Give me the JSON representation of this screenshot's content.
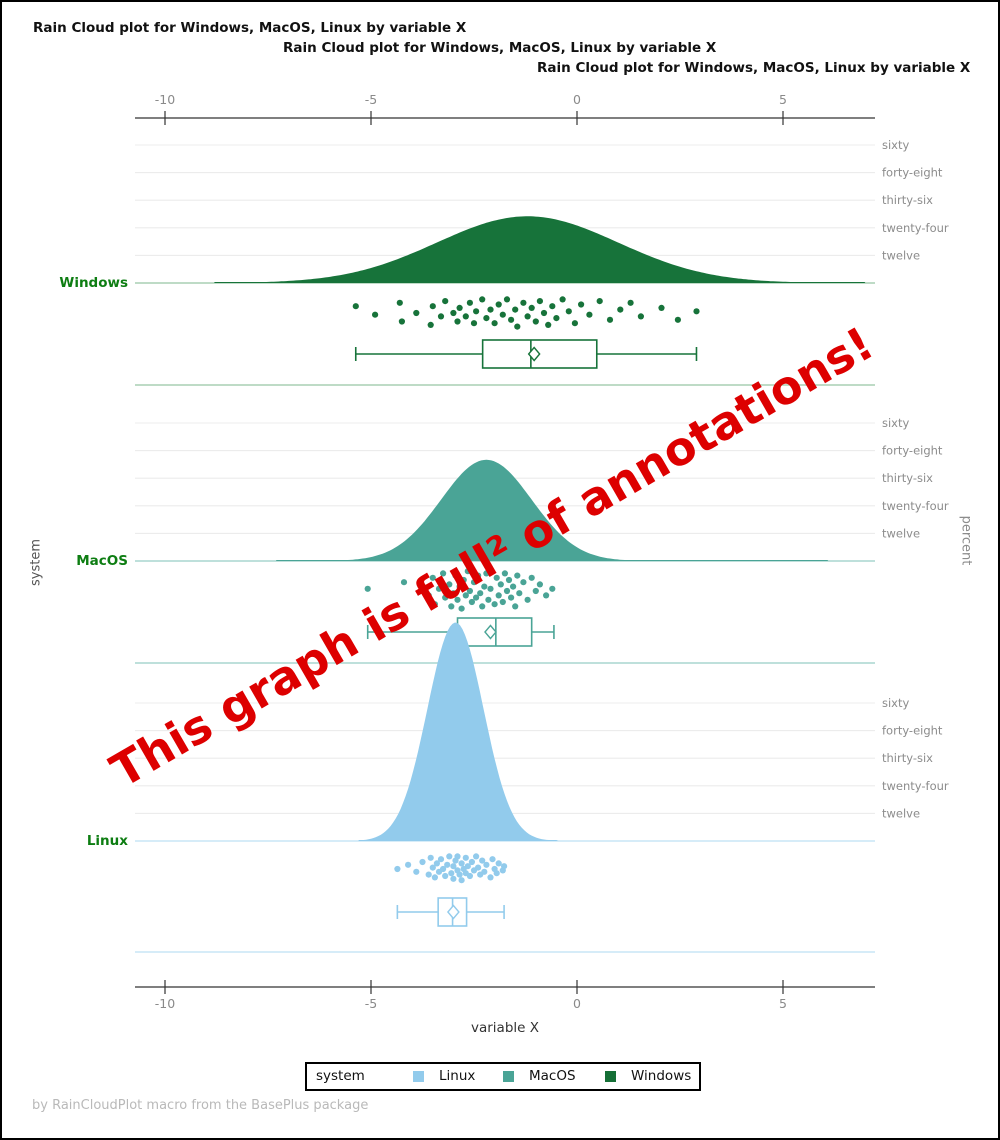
{
  "titles": [
    "Rain Cloud plot for Windows, MacOS, Linux by variable X",
    "Rain Cloud plot for Windows, MacOS, Linux by variable X",
    "Rain Cloud plot for Windows, MacOS, Linux by variable X"
  ],
  "annotation": {
    "text": "This graph is full² of annotations!",
    "color": "#dd0000",
    "rotation_deg": -30
  },
  "footer": "by RainCloudPlot macro from the BasePlus package",
  "axes": {
    "x": {
      "label": "variable X",
      "ticks": [
        -10,
        -5,
        0,
        5
      ],
      "range": [
        -10.75,
        7.25
      ]
    },
    "y_left_label": "system",
    "y_right_label": "percent",
    "percent_ticks": [
      {
        "value": 60,
        "label": "sixty"
      },
      {
        "value": 48,
        "label": "forty-eight"
      },
      {
        "value": 36,
        "label": "thirty-six"
      },
      {
        "value": 24,
        "label": "twenty-four"
      },
      {
        "value": 12,
        "label": "twelve"
      }
    ]
  },
  "legend": {
    "title": "system",
    "entries": [
      {
        "label": "Linux",
        "color": "#92cbec"
      },
      {
        "label": "MacOS",
        "color": "#4aa496"
      },
      {
        "label": "Windows",
        "color": "#156f36"
      }
    ]
  },
  "chart_data": {
    "type": "raincloud",
    "x_variable": "variable X",
    "y_variable": "system",
    "density_unit": "percent",
    "groups": [
      {
        "name": "Windows",
        "color": "#17733a",
        "light_color": "#a9cfb3",
        "density": {
          "mean": -1.2,
          "sd": 2.2,
          "peak_percent": 29,
          "range": [
            -8.8,
            7.0
          ]
        },
        "box": {
          "whisker_low": -5.37,
          "q1": -2.29,
          "median": -1.12,
          "q3": 0.48,
          "whisker_high": 2.9,
          "mean": -1.04
        },
        "points": [
          [
            -5.37,
            0.3
          ],
          [
            -4.9,
            0.55
          ],
          [
            -4.3,
            0.2
          ],
          [
            -4.25,
            0.75
          ],
          [
            -3.9,
            0.5
          ],
          [
            -3.55,
            0.85
          ],
          [
            -3.5,
            0.3
          ],
          [
            -3.3,
            0.6
          ],
          [
            -3.2,
            0.15
          ],
          [
            -3.0,
            0.5
          ],
          [
            -2.9,
            0.75
          ],
          [
            -2.85,
            0.35
          ],
          [
            -2.7,
            0.6
          ],
          [
            -2.6,
            0.2
          ],
          [
            -2.5,
            0.8
          ],
          [
            -2.45,
            0.45
          ],
          [
            -2.3,
            0.1
          ],
          [
            -2.2,
            0.65
          ],
          [
            -2.1,
            0.4
          ],
          [
            -2.0,
            0.8
          ],
          [
            -1.9,
            0.25
          ],
          [
            -1.8,
            0.55
          ],
          [
            -1.7,
            0.1
          ],
          [
            -1.6,
            0.7
          ],
          [
            -1.5,
            0.4
          ],
          [
            -1.45,
            0.9
          ],
          [
            -1.3,
            0.2
          ],
          [
            -1.2,
            0.6
          ],
          [
            -1.1,
            0.35
          ],
          [
            -1.0,
            0.75
          ],
          [
            -0.9,
            0.15
          ],
          [
            -0.8,
            0.5
          ],
          [
            -0.7,
            0.85
          ],
          [
            -0.6,
            0.3
          ],
          [
            -0.5,
            0.65
          ],
          [
            -0.35,
            0.1
          ],
          [
            -0.2,
            0.45
          ],
          [
            -0.05,
            0.8
          ],
          [
            0.1,
            0.25
          ],
          [
            0.3,
            0.55
          ],
          [
            0.55,
            0.15
          ],
          [
            0.8,
            0.7
          ],
          [
            1.05,
            0.4
          ],
          [
            1.3,
            0.2
          ],
          [
            1.55,
            0.6
          ],
          [
            2.05,
            0.35
          ],
          [
            2.45,
            0.7
          ],
          [
            2.9,
            0.45
          ]
        ]
      },
      {
        "name": "MacOS",
        "color": "#4aa496",
        "light_color": "#a9d6cf",
        "density": {
          "mean": -2.2,
          "sd": 1.1,
          "peak_percent": 44,
          "range": [
            -7.3,
            6.1
          ]
        },
        "box": {
          "whisker_low": -5.08,
          "q1": -2.9,
          "median": -1.97,
          "q3": -1.1,
          "whisker_high": -0.56,
          "mean": -2.1
        },
        "points": [
          [
            -5.08,
            0.45
          ],
          [
            -4.2,
            0.3
          ],
          [
            -3.6,
            0.6
          ],
          [
            -3.5,
            0.2
          ],
          [
            -3.45,
            0.8
          ],
          [
            -3.35,
            0.45
          ],
          [
            -3.25,
            0.1
          ],
          [
            -3.2,
            0.65
          ],
          [
            -3.1,
            0.35
          ],
          [
            -3.05,
            0.85
          ],
          [
            -3.0,
            0.55
          ],
          [
            -2.95,
            0.15
          ],
          [
            -2.9,
            0.7
          ],
          [
            -2.85,
            0.4
          ],
          [
            -2.8,
            0.9
          ],
          [
            -2.75,
            0.25
          ],
          [
            -2.7,
            0.6
          ],
          [
            -2.65,
            0.05
          ],
          [
            -2.6,
            0.5
          ],
          [
            -2.55,
            0.75
          ],
          [
            -2.5,
            0.3
          ],
          [
            -2.45,
            0.65
          ],
          [
            -2.4,
            0.15
          ],
          [
            -2.35,
            0.55
          ],
          [
            -2.3,
            0.85
          ],
          [
            -2.25,
            0.4
          ],
          [
            -2.2,
            0.1
          ],
          [
            -2.15,
            0.7
          ],
          [
            -2.1,
            0.45
          ],
          [
            -2.0,
            0.8
          ],
          [
            -1.95,
            0.2
          ],
          [
            -1.9,
            0.6
          ],
          [
            -1.85,
            0.35
          ],
          [
            -1.8,
            0.75
          ],
          [
            -1.75,
            0.1
          ],
          [
            -1.7,
            0.5
          ],
          [
            -1.65,
            0.25
          ],
          [
            -1.6,
            0.65
          ],
          [
            -1.55,
            0.4
          ],
          [
            -1.5,
            0.85
          ],
          [
            -1.45,
            0.15
          ],
          [
            -1.4,
            0.55
          ],
          [
            -1.3,
            0.3
          ],
          [
            -1.2,
            0.7
          ],
          [
            -1.1,
            0.2
          ],
          [
            -1.0,
            0.5
          ],
          [
            -0.9,
            0.35
          ],
          [
            -0.75,
            0.6
          ],
          [
            -0.6,
            0.45
          ]
        ]
      },
      {
        "name": "Linux",
        "color": "#92cbec",
        "light_color": "#c9e5f6",
        "density": {
          "mean": -2.95,
          "sd": 0.68,
          "peak_percent": 95,
          "range": [
            -5.3,
            -0.45
          ]
        },
        "box": {
          "whisker_low": -4.36,
          "q1": -3.37,
          "median": -3.02,
          "q3": -2.68,
          "whisker_high": -1.77,
          "mean": -3.0
        },
        "points": [
          [
            -4.36,
            0.5
          ],
          [
            -4.1,
            0.35
          ],
          [
            -3.9,
            0.6
          ],
          [
            -3.75,
            0.25
          ],
          [
            -3.6,
            0.7
          ],
          [
            -3.55,
            0.1
          ],
          [
            -3.5,
            0.45
          ],
          [
            -3.45,
            0.8
          ],
          [
            -3.4,
            0.3
          ],
          [
            -3.35,
            0.6
          ],
          [
            -3.3,
            0.15
          ],
          [
            -3.25,
            0.5
          ],
          [
            -3.2,
            0.75
          ],
          [
            -3.15,
            0.35
          ],
          [
            -3.1,
            0.05
          ],
          [
            -3.05,
            0.65
          ],
          [
            -3.0,
            0.4
          ],
          [
            -3.0,
            0.85
          ],
          [
            -2.95,
            0.2
          ],
          [
            -2.9,
            0.55
          ],
          [
            -2.9,
            0.05
          ],
          [
            -2.85,
            0.7
          ],
          [
            -2.8,
            0.3
          ],
          [
            -2.8,
            0.9
          ],
          [
            -2.75,
            0.5
          ],
          [
            -2.7,
            0.1
          ],
          [
            -2.7,
            0.65
          ],
          [
            -2.65,
            0.4
          ],
          [
            -2.6,
            0.75
          ],
          [
            -2.55,
            0.25
          ],
          [
            -2.5,
            0.55
          ],
          [
            -2.45,
            0.05
          ],
          [
            -2.4,
            0.45
          ],
          [
            -2.35,
            0.7
          ],
          [
            -2.3,
            0.2
          ],
          [
            -2.25,
            0.6
          ],
          [
            -2.2,
            0.35
          ],
          [
            -2.1,
            0.8
          ],
          [
            -2.05,
            0.15
          ],
          [
            -2.0,
            0.5
          ],
          [
            -1.95,
            0.65
          ],
          [
            -1.9,
            0.3
          ],
          [
            -1.8,
            0.55
          ],
          [
            -1.77,
            0.4
          ]
        ]
      }
    ]
  }
}
